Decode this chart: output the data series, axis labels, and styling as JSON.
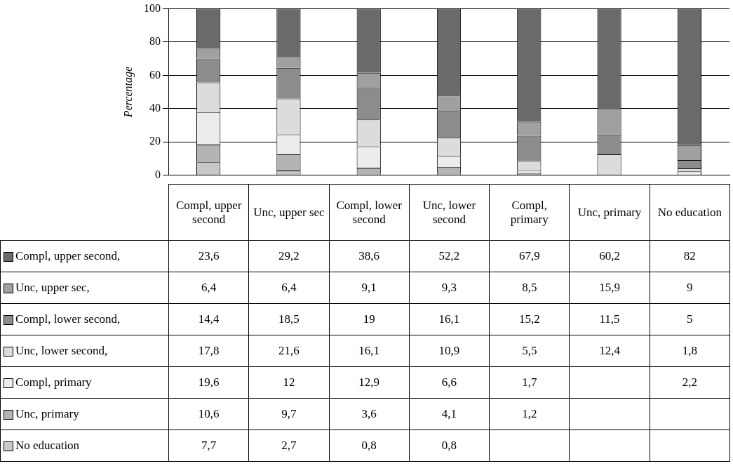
{
  "chart_data": {
    "type": "bar",
    "stacked": true,
    "ylabel": "Percentage",
    "categories": [
      "Compl, upper second",
      "Unc, upper sec",
      "Compl, lower second",
      "Unc, lower second",
      "Compl, primary",
      "Unc, primary",
      "No education"
    ],
    "series": [
      {
        "name": "No education",
        "color": "#c8c8c8",
        "values": [
          7.7,
          2.7,
          0.8,
          0.8,
          null,
          null,
          null
        ],
        "value_labels": [
          "7,7",
          "2,7",
          "0,8",
          "0,8",
          null,
          null,
          null
        ]
      },
      {
        "name": "Unc, primary",
        "color": "#b4b4b4",
        "values": [
          10.6,
          9.7,
          3.6,
          4.1,
          1.2,
          null,
          null
        ],
        "value_labels": [
          "10,6",
          "9,7",
          "3,6",
          "4,1",
          "1,2",
          null,
          null
        ]
      },
      {
        "name": "Compl, primary",
        "color": "#ececec",
        "values": [
          19.6,
          12,
          12.9,
          6.6,
          1.7,
          null,
          2.2
        ],
        "value_labels": [
          "19,6",
          "12",
          "12,9",
          "6,6",
          "1,7",
          null,
          "2,2"
        ]
      },
      {
        "name": "Unc, lower second,",
        "color": "#dcdcdc",
        "values": [
          17.8,
          21.6,
          16.1,
          10.9,
          5.5,
          12.4,
          1.8
        ],
        "value_labels": [
          "17,8",
          "21,6",
          "16,1",
          "10,9",
          "5,5",
          "12,4",
          "1,8"
        ]
      },
      {
        "name": "Compl, lower second,",
        "color": "#8c8c8c",
        "values": [
          14.4,
          18.5,
          19,
          16.1,
          15.2,
          11.5,
          5
        ],
        "value_labels": [
          "14,4",
          "18,5",
          "19",
          "16,1",
          "15,2",
          "11,5",
          "5"
        ]
      },
      {
        "name": "Unc, upper sec,",
        "color": "#a0a0a0",
        "values": [
          6.4,
          6.4,
          9.1,
          9.3,
          8.5,
          15.9,
          9
        ],
        "value_labels": [
          "6,4",
          "6,4",
          "9,1",
          "9,3",
          "8,5",
          "15,9",
          "9"
        ]
      },
      {
        "name": "Compl, upper second,",
        "color": "#6a6a6a",
        "values": [
          23.6,
          29.2,
          38.6,
          52.2,
          67.9,
          60.2,
          82
        ],
        "value_labels": [
          "23,6",
          "29,2",
          "38,6",
          "52,2",
          "67,9",
          "60,2",
          "82"
        ]
      }
    ],
    "ylim": [
      0,
      100
    ],
    "yticks": [
      0,
      20,
      40,
      60,
      80,
      100
    ],
    "grid": "y",
    "legend": "bottom left"
  }
}
